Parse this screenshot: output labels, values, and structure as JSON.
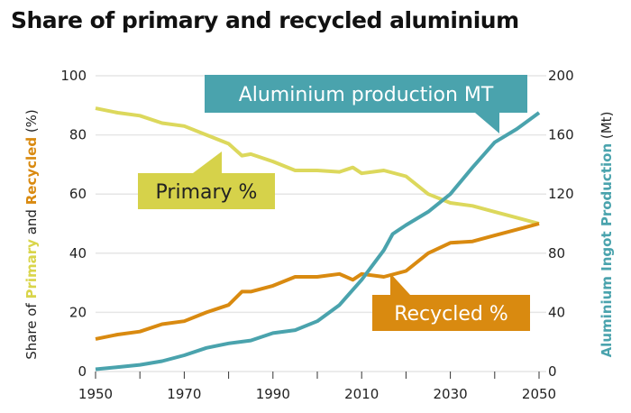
{
  "chart_data": {
    "type": "line",
    "title": "Share of primary and recycled aluminium",
    "xlim": [
      1950,
      2050
    ],
    "xticks": [
      "1950",
      "1970",
      "1990",
      "2010",
      "2030",
      "2050"
    ],
    "left_axis": {
      "label_parts": [
        {
          "text": "Share of ",
          "color": "#222222"
        },
        {
          "text": "Primary",
          "color": "#d9d54a"
        },
        {
          "text": " and ",
          "color": "#222222"
        },
        {
          "text": "Recycled",
          "color": "#d98a10"
        },
        {
          "text": " (%)",
          "color": "#222222"
        }
      ],
      "ylim": [
        0,
        100
      ],
      "ticks": [
        "0",
        "20",
        "40",
        "60",
        "80",
        "100"
      ]
    },
    "right_axis": {
      "label_parts": [
        {
          "text": "Aluminium Ingot Production",
          "color": "#4aa3ad"
        },
        {
          "text": " (Mt)",
          "color": "#222222"
        }
      ],
      "ylim": [
        0,
        200
      ],
      "ticks": [
        "0",
        "40",
        "80",
        "120",
        "160",
        "200"
      ]
    },
    "grid": true,
    "series": [
      {
        "name": "Primary %",
        "axis": "left",
        "color": "#dcd85c",
        "label_bg": "#d6d24a",
        "label_color": "#222222",
        "x": [
          1950,
          1955,
          1960,
          1965,
          1970,
          1975,
          1980,
          1983,
          1985,
          1990,
          1995,
          2000,
          2005,
          2008,
          2010,
          2015,
          2020,
          2025,
          2030,
          2035,
          2040,
          2045,
          2050
        ],
        "y": [
          89,
          87.5,
          86.5,
          84,
          83,
          80,
          77,
          73,
          73.5,
          71,
          68,
          68,
          67.5,
          69,
          67,
          68,
          66,
          60,
          57,
          56,
          54,
          52,
          50
        ]
      },
      {
        "name": "Recycled %",
        "axis": "left",
        "color": "#d98a10",
        "label_bg": "#d98a10",
        "label_color": "#ffffff",
        "x": [
          1950,
          1955,
          1960,
          1965,
          1970,
          1975,
          1980,
          1983,
          1985,
          1990,
          1995,
          2000,
          2005,
          2008,
          2010,
          2015,
          2020,
          2025,
          2030,
          2035,
          2040,
          2045,
          2050
        ],
        "y": [
          11,
          12.5,
          13.5,
          16,
          17,
          20,
          22.5,
          27,
          27,
          29,
          32,
          32,
          33,
          31,
          33,
          32,
          34,
          40,
          43.5,
          44,
          46,
          48,
          50
        ]
      },
      {
        "name": "Aluminium production MT",
        "axis": "right",
        "color": "#4aa3ad",
        "label_bg": "#4aa3ad",
        "label_color": "#ffffff",
        "x": [
          1950,
          1955,
          1960,
          1965,
          1970,
          1975,
          1980,
          1985,
          1990,
          1995,
          2000,
          2005,
          2010,
          2015,
          2017,
          2020,
          2025,
          2030,
          2035,
          2040,
          2045,
          2050
        ],
        "y": [
          1.5,
          3,
          4.5,
          7,
          11,
          16,
          19,
          21,
          26,
          28,
          34,
          45,
          62,
          82,
          93,
          99,
          108,
          120,
          138,
          155,
          164,
          175
        ]
      }
    ]
  }
}
